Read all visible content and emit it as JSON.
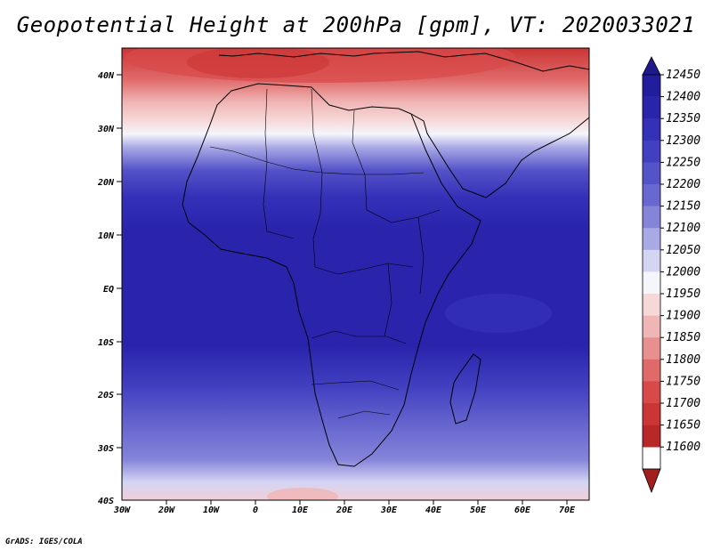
{
  "title": "Geopotential Height at 200hPa [gpm], VT: 2020033021",
  "footer": "GrADS: IGES/COLA",
  "map": {
    "lat_ticks": [
      "40N",
      "30N",
      "20N",
      "10N",
      "EQ",
      "10S",
      "20S",
      "30S",
      "40S"
    ],
    "lon_ticks": [
      "30W",
      "20W",
      "10W",
      "0",
      "10E",
      "20E",
      "30E",
      "40E",
      "50E",
      "60E",
      "70E"
    ]
  },
  "colorbar": {
    "levels": [
      "12450",
      "12400",
      "12350",
      "12300",
      "12250",
      "12200",
      "12150",
      "12100",
      "12050",
      "12000",
      "11950",
      "11900",
      "11850",
      "11800",
      "11750",
      "11700",
      "11650",
      "11600"
    ],
    "colors": [
      "#1e1a8c",
      "#221d9c",
      "#2a24ad",
      "#3430b8",
      "#4240c0",
      "#5553c8",
      "#6968d0",
      "#8584d9",
      "#a9a9e6",
      "#d4d4f3",
      "#f5f5fc",
      "#f6d8d8",
      "#f0b5b5",
      "#e89090",
      "#e06a6a",
      "#d84a4a",
      "#cc3535",
      "#b82828",
      "#a31f1f"
    ]
  }
}
